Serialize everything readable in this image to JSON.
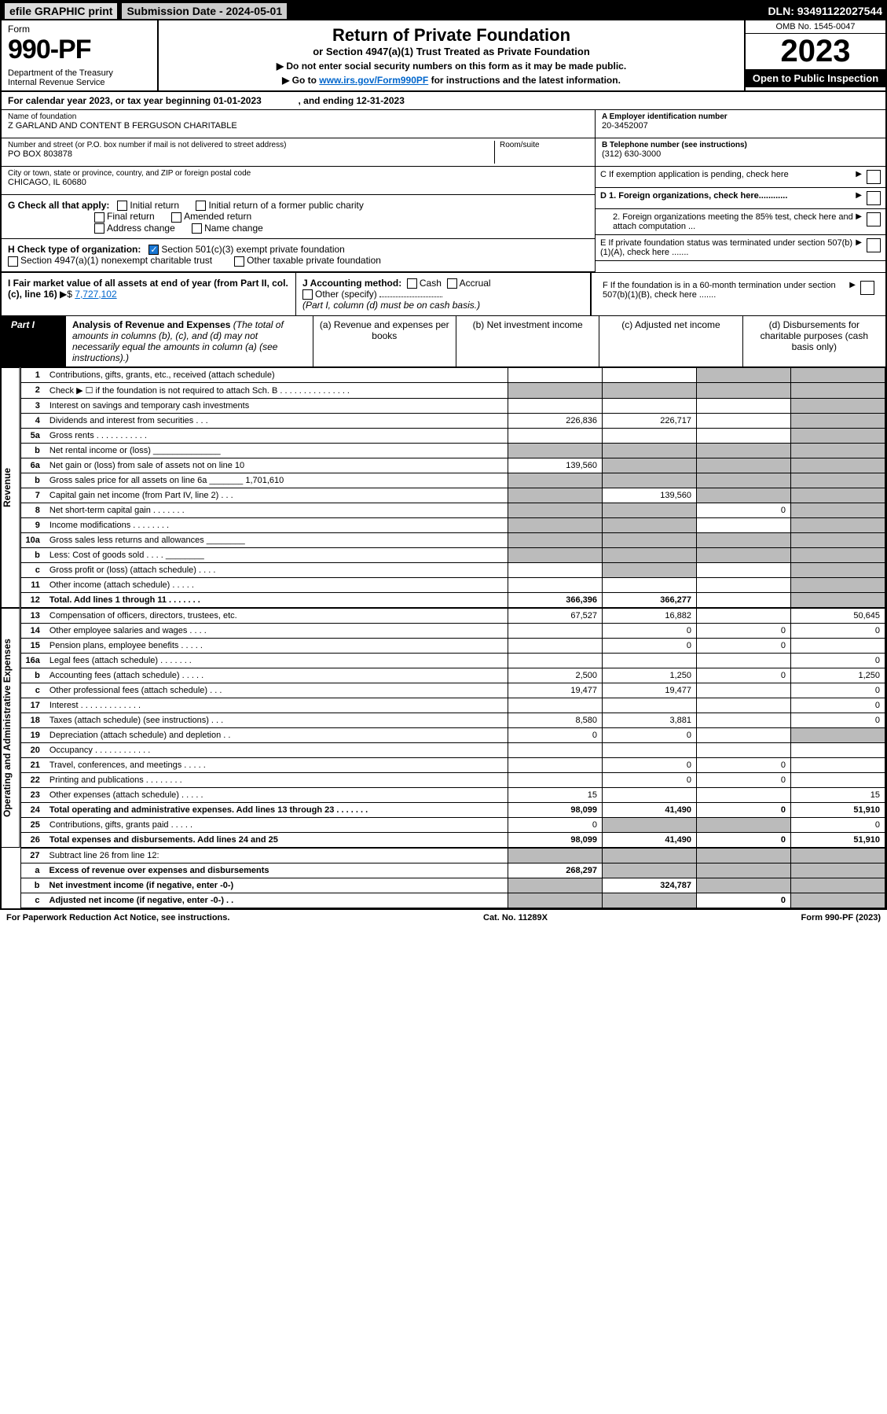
{
  "topbar": {
    "efile": "efile GRAPHIC print",
    "submission": "Submission Date - 2024-05-01",
    "dln": "DLN: 93491122027544"
  },
  "header": {
    "form_label": "Form",
    "form_number": "990-PF",
    "dept": "Department of the Treasury\nInternal Revenue Service",
    "title": "Return of Private Foundation",
    "subtitle": "or Section 4947(a)(1) Trust Treated as Private Foundation",
    "note1": "▶ Do not enter social security numbers on this form as it may be made public.",
    "note2_pre": "▶ Go to ",
    "note2_link": "www.irs.gov/Form990PF",
    "note2_post": " for instructions and the latest information.",
    "omb": "OMB No. 1545-0047",
    "year": "2023",
    "inspection": "Open to Public Inspection"
  },
  "calendar": "For calendar year 2023, or tax year beginning 01-01-2023              , and ending 12-31-2023",
  "info": {
    "name_lbl": "Name of foundation",
    "name": "Z GARLAND AND CONTENT B FERGUSON CHARITABLE",
    "addr_lbl": "Number and street (or P.O. box number if mail is not delivered to street address)",
    "addr": "PO BOX 803878",
    "room_lbl": "Room/suite",
    "city_lbl": "City or town, state or province, country, and ZIP or foreign postal code",
    "city": "CHICAGO, IL  60680",
    "a_lbl": "A Employer identification number",
    "a_val": "20-3452007",
    "b_lbl": "B Telephone number (see instructions)",
    "b_val": "(312) 630-3000",
    "c_lbl": "C If exemption application is pending, check here",
    "d1": "D 1. Foreign organizations, check here............",
    "d2": "2. Foreign organizations meeting the 85% test, check here and attach computation ...",
    "e": "E  If private foundation status was terminated under section 507(b)(1)(A), check here .......",
    "f": "F  If the foundation is in a 60-month termination under section 507(b)(1)(B), check here .......",
    "g_lbl": "G Check all that apply:",
    "g_opts": [
      "Initial return",
      "Initial return of a former public charity",
      "Final return",
      "Amended return",
      "Address change",
      "Name change"
    ],
    "h_lbl": "H Check type of organization:",
    "h_opt1": "Section 501(c)(3) exempt private foundation",
    "h_opt2": "Section 4947(a)(1) nonexempt charitable trust",
    "h_opt3": "Other taxable private foundation",
    "i_lbl": "I Fair market value of all assets at end of year (from Part II, col. (c), line 16)",
    "i_val": "7,727,102",
    "j_lbl": "J Accounting method:",
    "j_cash": "Cash",
    "j_accrual": "Accrual",
    "j_other": "Other (specify)",
    "j_note": "(Part I, column (d) must be on cash basis.)"
  },
  "part1": {
    "label": "Part I",
    "title_b": "Analysis of Revenue and Expenses",
    "title_rest": " (The total of amounts in columns (b), (c), and (d) may not necessarily equal the amounts in column (a) (see instructions).)",
    "col_a": "(a)  Revenue and expenses per books",
    "col_b": "(b)  Net investment income",
    "col_c": "(c)  Adjusted net income",
    "col_d": "(d)  Disbursements for charitable purposes (cash basis only)"
  },
  "side": {
    "rev": "Revenue",
    "exp": "Operating and Administrative Expenses"
  },
  "rows": [
    {
      "n": "1",
      "d": "Contributions, gifts, grants, etc., received (attach schedule)",
      "a": "",
      "b": "",
      "cS": true,
      "dS": true
    },
    {
      "n": "2",
      "d": "Check ▶ ☐ if the foundation is not required to attach Sch. B   . . . . . . . . . . . . . . .",
      "aS": true,
      "bS": true,
      "cS": true,
      "dS": true
    },
    {
      "n": "3",
      "d": "Interest on savings and temporary cash investments",
      "a": "",
      "b": "",
      "c": "",
      "dS": true
    },
    {
      "n": "4",
      "d": "Dividends and interest from securities  . . .",
      "a": "226,836",
      "b": "226,717",
      "c": "",
      "dS": true
    },
    {
      "n": "5a",
      "d": "Gross rents  . . . . . . . . . . .",
      "a": "",
      "b": "",
      "c": "",
      "dS": true
    },
    {
      "n": "b",
      "d": "Net rental income or (loss)  ______________",
      "aS": true,
      "bS": true,
      "cS": true,
      "dS": true
    },
    {
      "n": "6a",
      "d": "Net gain or (loss) from sale of assets not on line 10",
      "a": "139,560",
      "bS": true,
      "cS": true,
      "dS": true
    },
    {
      "n": "b",
      "d": "Gross sales price for all assets on line 6a _______ 1,701,610",
      "aS": true,
      "bS": true,
      "cS": true,
      "dS": true
    },
    {
      "n": "7",
      "d": "Capital gain net income (from Part IV, line 2)  . . .",
      "aS": true,
      "b": "139,560",
      "cS": true,
      "dS": true
    },
    {
      "n": "8",
      "d": "Net short-term capital gain  . . . . . . .",
      "aS": true,
      "bS": true,
      "c": "0",
      "dS": true
    },
    {
      "n": "9",
      "d": "Income modifications  . . . . . . . .",
      "aS": true,
      "bS": true,
      "c": "",
      "dS": true
    },
    {
      "n": "10a",
      "d": "Gross sales less returns and allowances  ________",
      "aS": true,
      "bS": true,
      "cS": true,
      "dS": true
    },
    {
      "n": "b",
      "d": "Less: Cost of goods sold  . . . .  ________",
      "aS": true,
      "bS": true,
      "cS": true,
      "dS": true
    },
    {
      "n": "c",
      "d": "Gross profit or (loss) (attach schedule)  . . . .",
      "a": "",
      "bS": true,
      "c": "",
      "dS": true
    },
    {
      "n": "11",
      "d": "Other income (attach schedule)  . . . . .",
      "a": "",
      "b": "",
      "c": "",
      "dS": true
    },
    {
      "n": "12",
      "d": "Total. Add lines 1 through 11  . . . . . . .",
      "a": "366,396",
      "b": "366,277",
      "c": "",
      "dS": true,
      "bold": true
    }
  ],
  "exprows": [
    {
      "n": "13",
      "d": "Compensation of officers, directors, trustees, etc.",
      "a": "67,527",
      "b": "16,882",
      "c": "",
      "e": "50,645"
    },
    {
      "n": "14",
      "d": "Other employee salaries and wages  . . . .",
      "a": "",
      "b": "0",
      "c": "0",
      "e": "0"
    },
    {
      "n": "15",
      "d": "Pension plans, employee benefits  . . . . .",
      "a": "",
      "b": "0",
      "c": "0",
      "e": ""
    },
    {
      "n": "16a",
      "d": "Legal fees (attach schedule)  . . . . . . .",
      "a": "",
      "b": "",
      "c": "",
      "e": "0"
    },
    {
      "n": "b",
      "d": "Accounting fees (attach schedule)  . . . . .",
      "a": "2,500",
      "b": "1,250",
      "c": "0",
      "e": "1,250"
    },
    {
      "n": "c",
      "d": "Other professional fees (attach schedule)  . . .",
      "a": "19,477",
      "b": "19,477",
      "c": "",
      "e": "0"
    },
    {
      "n": "17",
      "d": "Interest  . . . . . . . . . . . . .",
      "a": "",
      "b": "",
      "c": "",
      "e": "0"
    },
    {
      "n": "18",
      "d": "Taxes (attach schedule) (see instructions)  . . .",
      "a": "8,580",
      "b": "3,881",
      "c": "",
      "e": "0"
    },
    {
      "n": "19",
      "d": "Depreciation (attach schedule) and depletion  . .",
      "a": "0",
      "b": "0",
      "c": "",
      "eS": true
    },
    {
      "n": "20",
      "d": "Occupancy  . . . . . . . . . . . .",
      "a": "",
      "b": "",
      "c": "",
      "e": ""
    },
    {
      "n": "21",
      "d": "Travel, conferences, and meetings  . . . . .",
      "a": "",
      "b": "0",
      "c": "0",
      "e": ""
    },
    {
      "n": "22",
      "d": "Printing and publications  . . . . . . . .",
      "a": "",
      "b": "0",
      "c": "0",
      "e": ""
    },
    {
      "n": "23",
      "d": "Other expenses (attach schedule)  . . . . .",
      "a": "15",
      "b": "",
      "c": "",
      "e": "15"
    },
    {
      "n": "24",
      "d": "Total operating and administrative expenses. Add lines 13 through 23  . . . . . . .",
      "a": "98,099",
      "b": "41,490",
      "c": "0",
      "e": "51,910",
      "bold": true
    },
    {
      "n": "25",
      "d": "Contributions, gifts, grants paid  . . . . .",
      "a": "0",
      "bS": true,
      "cS": true,
      "e": "0"
    },
    {
      "n": "26",
      "d": "Total expenses and disbursements. Add lines 24 and 25",
      "a": "98,099",
      "b": "41,490",
      "c": "0",
      "e": "51,910",
      "bold": true
    }
  ],
  "bottomrows": [
    {
      "n": "27",
      "d": "Subtract line 26 from line 12:",
      "aS": true,
      "bS": true,
      "cS": true,
      "eS": true
    },
    {
      "n": "a",
      "d": "Excess of revenue over expenses and disbursements",
      "a": "268,297",
      "bS": true,
      "cS": true,
      "eS": true,
      "bold": true
    },
    {
      "n": "b",
      "d": "Net investment income (if negative, enter -0-)",
      "aS": true,
      "b": "324,787",
      "cS": true,
      "eS": true,
      "bold": true
    },
    {
      "n": "c",
      "d": "Adjusted net income (if negative, enter -0-)  . .",
      "aS": true,
      "bS": true,
      "c": "0",
      "eS": true,
      "bold": true
    }
  ],
  "footer": {
    "left": "For Paperwork Reduction Act Notice, see instructions.",
    "mid": "Cat. No. 11289X",
    "right": "Form 990-PF (2023)"
  }
}
